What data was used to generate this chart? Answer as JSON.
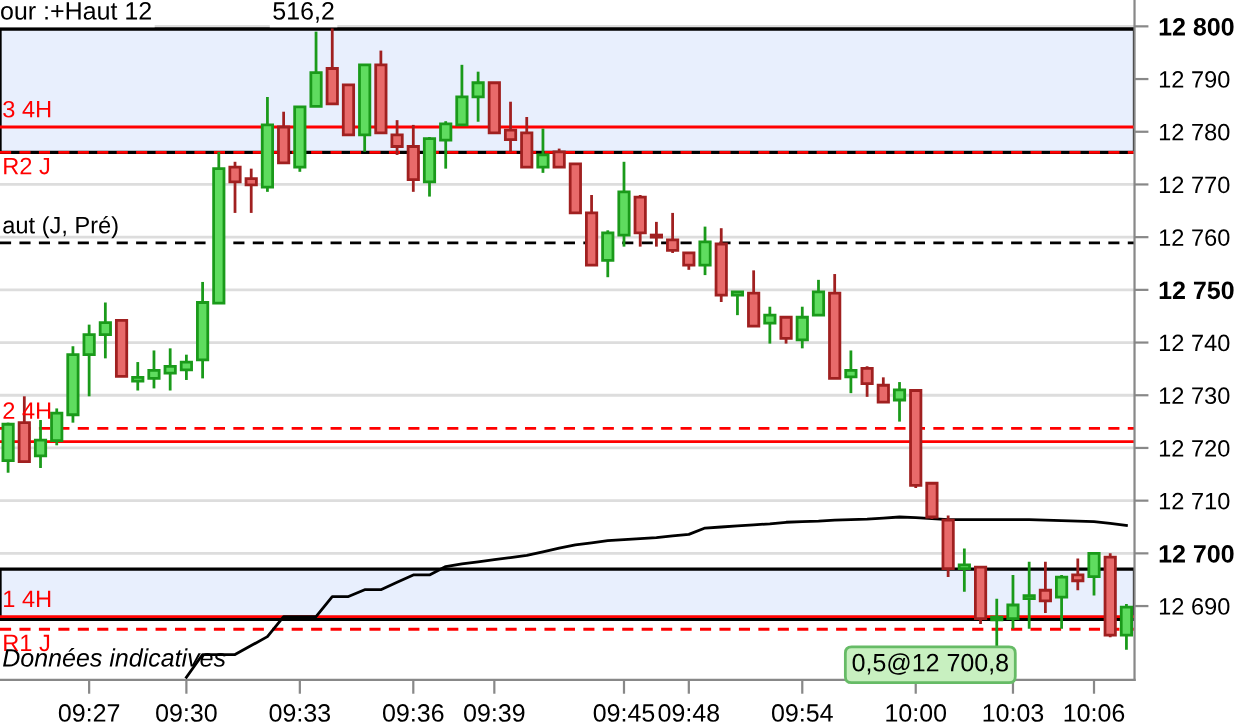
{
  "chart_data": {
    "type": "candlestick",
    "categories": [
      null,
      null,
      null,
      null,
      null,
      "09:27",
      null,
      null,
      null,
      null,
      null,
      "09:30",
      null,
      null,
      null,
      null,
      null,
      null,
      "09:33",
      null,
      null,
      null,
      null,
      null,
      null,
      "09:36",
      null,
      null,
      null,
      null,
      "09:39",
      null,
      null,
      null,
      null,
      null,
      null,
      null,
      "09:45",
      null,
      null,
      null,
      "09:48",
      null,
      null,
      null,
      null,
      null,
      null,
      "09:54",
      null,
      null,
      null,
      null,
      null,
      null,
      "10:00",
      null,
      null,
      null,
      null,
      null,
      "10:03",
      null,
      null,
      null,
      null,
      "10:06",
      null,
      null
    ],
    "ohlc": [
      [
        12717.6,
        12724.8,
        12715.3,
        12724.5
      ],
      [
        12724.8,
        12729.8,
        12717.4,
        12717.4
      ],
      [
        12718.5,
        12725.3,
        12716.2,
        12721.5
      ],
      [
        12721.4,
        12727.5,
        12720.5,
        12726.6
      ],
      [
        12726.3,
        12739.3,
        12724.8,
        12737.7
      ],
      [
        12737.7,
        12743.4,
        12729.8,
        12741.5
      ],
      [
        12741.5,
        12747.6,
        12737,
        12743.8
      ],
      [
        12744.2,
        12744.2,
        12733.6,
        12733.6
      ],
      [
        12732.7,
        12736.3,
        12730.9,
        12733.4
      ],
      [
        12733.2,
        12738.5,
        12731.3,
        12734.7
      ],
      [
        12734.2,
        12738.9,
        12730.9,
        12735.5
      ],
      [
        12734.8,
        12737.7,
        12732.9,
        12736.3
      ],
      [
        12736.7,
        12751.5,
        12733.2,
        12747.6
      ],
      [
        12747.5,
        12776.2,
        12747.5,
        12773
      ],
      [
        12773.3,
        12774.3,
        12764.6,
        12770.5
      ],
      [
        12771.1,
        12773,
        12764.6,
        12769.9
      ],
      [
        12769.5,
        12786.6,
        12768.6,
        12781.3
      ],
      [
        12780.9,
        12783.8,
        12774.1,
        12774.1
      ],
      [
        12773.3,
        12784.7,
        12772.4,
        12784.7
      ],
      [
        12784.8,
        12799,
        12784.8,
        12791.2
      ],
      [
        12792,
        12799.6,
        12785.3,
        12785.3
      ],
      [
        12788.9,
        12788.9,
        12779.4,
        12779.4
      ],
      [
        12779.4,
        12792.7,
        12776.2,
        12792.7
      ],
      [
        12792.7,
        12795.4,
        12779.8,
        12779.8
      ],
      [
        12779.4,
        12782.2,
        12775.6,
        12777.2
      ],
      [
        12777.2,
        12781.3,
        12768.6,
        12770.9
      ],
      [
        12770.5,
        12779,
        12767.7,
        12778.7
      ],
      [
        12778.4,
        12782,
        12773,
        12781.5
      ],
      [
        12781.3,
        12792.7,
        12781.3,
        12786.6
      ],
      [
        12786.6,
        12791.4,
        12781.9,
        12789.3
      ],
      [
        12789.3,
        12789.3,
        12779.8,
        12779.8
      ],
      [
        12780.3,
        12785.7,
        12776.2,
        12778.5
      ],
      [
        12779.8,
        12782.8,
        12773.3,
        12773.3
      ],
      [
        12773.3,
        12780.6,
        12772.2,
        12775.6
      ],
      [
        12776.2,
        12776.8,
        12773.3,
        12773.3
      ],
      [
        12773.9,
        12773.9,
        12764.6,
        12764.6
      ],
      [
        12764.6,
        12768,
        12754.7,
        12754.7
      ],
      [
        12755.6,
        12761.3,
        12752.4,
        12760.8
      ],
      [
        12760.4,
        12774.3,
        12758.2,
        12768.6
      ],
      [
        12767.6,
        12768,
        12758.2,
        12760.8
      ],
      [
        12760.4,
        12762.9,
        12758.2,
        12760
      ],
      [
        12759.5,
        12764.6,
        12757,
        12757.5
      ],
      [
        12757,
        12757,
        12753.8,
        12754.7
      ],
      [
        12754.7,
        12762,
        12752.8,
        12759.1
      ],
      [
        12758.7,
        12761.7,
        12747.7,
        12749
      ],
      [
        12749,
        12749.6,
        12745.2,
        12749.6
      ],
      [
        12749.4,
        12753.7,
        12743.1,
        12743.1
      ],
      [
        12743.7,
        12746.8,
        12739.8,
        12745.2
      ],
      [
        12744.8,
        12744.8,
        12739.8,
        12740.8
      ],
      [
        12740.5,
        12746.8,
        12738.9,
        12744.8
      ],
      [
        12745.2,
        12751.9,
        12745.2,
        12749.6
      ],
      [
        12749.4,
        12753,
        12733.2,
        12733.2
      ],
      [
        12733.5,
        12738.5,
        12730.4,
        12734.7
      ],
      [
        12735.1,
        12735.5,
        12729.7,
        12732.2
      ],
      [
        12731.9,
        12733.4,
        12728.7,
        12728.7
      ],
      [
        12729.1,
        12732.5,
        12725,
        12731
      ],
      [
        12730.9,
        12730.9,
        12712.4,
        12712.9
      ],
      [
        12713.3,
        12713.3,
        12706.5,
        12706.9
      ],
      [
        12706.3,
        12707.2,
        12695.5,
        12697.1
      ],
      [
        12697.1,
        12700.9,
        12692.7,
        12697.8
      ],
      [
        12697.4,
        12697.4,
        12686.6,
        12687.6
      ],
      [
        12687.4,
        12691.4,
        12682.3,
        12687.9
      ],
      [
        12687.6,
        12695.9,
        12685.7,
        12690.2
      ],
      [
        12691.4,
        12698.4,
        12685.7,
        12692
      ],
      [
        12693,
        12698.4,
        12688.7,
        12691
      ],
      [
        12691.7,
        12695.9,
        12685.7,
        12695.5
      ],
      [
        12695.9,
        12699,
        12693,
        12694.8
      ],
      [
        12695.6,
        12700,
        12692,
        12700
      ],
      [
        12699.3,
        12700,
        12684.1,
        12684.5
      ],
      [
        12684.5,
        12690.4,
        12681.7,
        12689.8
      ]
    ],
    "series": [
      {
        "type": "line",
        "color": "#000000",
        "values": [
          null,
          null,
          null,
          null,
          null,
          null,
          null,
          null,
          null,
          null,
          null,
          12676.5,
          12680.8,
          12680.8,
          12680.8,
          12682.5,
          12684.2,
          12688,
          12688,
          12688,
          12691.8,
          12691.8,
          12693.1,
          12693.1,
          12694.5,
          12695.9,
          12695.9,
          12697.5,
          12698,
          12698.4,
          12698.8,
          12699.2,
          12699.6,
          12700.3,
          12701,
          12701.6,
          12702,
          12702.4,
          12702.6,
          12702.8,
          12703,
          12703.3,
          12703.6,
          12704.8,
          12705,
          12705.2,
          12705.4,
          12705.6,
          12705.9,
          12706,
          12706.1,
          12706.3,
          12706.4,
          12706.5,
          12706.7,
          12706.9,
          12706.8,
          12706.6,
          12706.4,
          12706.4,
          12706.4,
          12706.4,
          12706.4,
          12706.4,
          12706.3,
          12706.2,
          12706.1,
          12706,
          12705.7,
          12705.3
        ]
      }
    ],
    "ylim": [
      12676,
      12805
    ],
    "yticks": [
      {
        "value": 12690,
        "label": "12 690"
      },
      {
        "value": 12700,
        "label": "12 700"
      },
      {
        "value": 12710,
        "label": "12 710"
      },
      {
        "value": 12720,
        "label": "12 720"
      },
      {
        "value": 12730,
        "label": "12 730"
      },
      {
        "value": 12740,
        "label": "12 740"
      },
      {
        "value": 12750,
        "label": "12 750"
      },
      {
        "value": 12760,
        "label": "12 760"
      },
      {
        "value": 12770,
        "label": "12 770"
      },
      {
        "value": 12780,
        "label": "12 780"
      },
      {
        "value": 12790,
        "label": "12 790"
      },
      {
        "value": 12800,
        "label": "12 800"
      }
    ],
    "grid": "y",
    "bands": [
      {
        "axis": "y",
        "from": 12776.1,
        "to": 12799.5,
        "label": null,
        "color": "#e8effd"
      },
      {
        "axis": "y",
        "from": 12687.5,
        "to": 12697,
        "label": null,
        "color": "#e8effd"
      }
    ],
    "ref_lines": [
      {
        "axis": "y",
        "value": 12780.9,
        "label": "3 4H",
        "color": "#ff0000",
        "line_style": "solid"
      },
      {
        "axis": "y",
        "value": 12776.1,
        "label": "R2 J",
        "color": "#ff0000",
        "line_style": "dashed"
      },
      {
        "axis": "y",
        "value": 12758.9,
        "label": "aut (J, Pré)",
        "color": "#000000",
        "line_style": "dashed"
      },
      {
        "axis": "y",
        "value": 12723.7,
        "label": "2 4H",
        "color": "#ff0000",
        "line_style": "dashed"
      },
      {
        "axis": "y",
        "value": 12721.2,
        "label": null,
        "color": "#ff0000",
        "line_style": "solid"
      },
      {
        "axis": "y",
        "value": 12688,
        "label": "1 4H",
        "color": "#ff0000",
        "line_style": "solid"
      },
      {
        "axis": "y",
        "value": 12685.6,
        "label": "R1 J",
        "color": "#ff0000",
        "line_style": "dashed"
      }
    ],
    "annotations": [
      "our :+Haut 12",
      "Données indicatives",
      "0,5@12 700,8",
      "516,2"
    ]
  }
}
